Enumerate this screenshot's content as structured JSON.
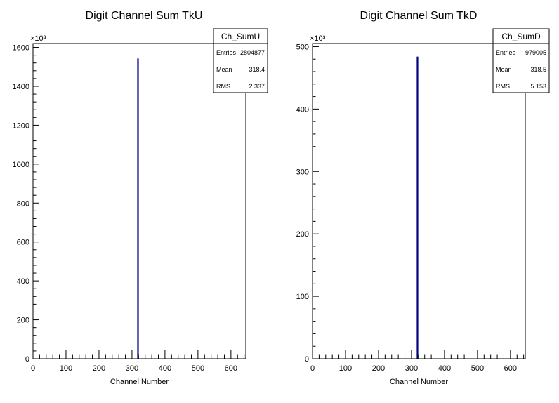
{
  "chart_data": [
    {
      "type": "bar",
      "title": "Digit Channel Sum TkU",
      "xlabel": "Channel Number",
      "ylabel": "",
      "y_multiplier_label": "×10³",
      "xlim": [
        0,
        645
      ],
      "ylim": [
        0,
        1620
      ],
      "xticks": [
        0,
        100,
        200,
        300,
        400,
        500,
        600
      ],
      "yticks": [
        0,
        200,
        400,
        600,
        800,
        1000,
        1200,
        1400,
        1600
      ],
      "bars": [
        {
          "x": 318,
          "y": 1543
        }
      ],
      "stats": {
        "name": "Ch_SumU",
        "rows": [
          {
            "label": "Entries",
            "value": "2804877"
          },
          {
            "label": "Mean",
            "value": "318.4"
          },
          {
            "label": "RMS",
            "value": "2.337"
          }
        ]
      },
      "color": "#000080"
    },
    {
      "type": "bar",
      "title": "Digit Channel Sum TkD",
      "xlabel": "Channel Number",
      "ylabel": "",
      "y_multiplier_label": "×10³",
      "xlim": [
        0,
        645
      ],
      "ylim": [
        0,
        505
      ],
      "xticks": [
        0,
        100,
        200,
        300,
        400,
        500,
        600
      ],
      "yticks": [
        0,
        100,
        200,
        300,
        400,
        500
      ],
      "bars": [
        {
          "x": 318,
          "y": 484
        }
      ],
      "stats": {
        "name": "Ch_SumD",
        "rows": [
          {
            "label": "Entries",
            "value": "979005"
          },
          {
            "label": "Mean",
            "value": "318.5"
          },
          {
            "label": "RMS",
            "value": "5.153"
          }
        ]
      },
      "color": "#000080"
    }
  ]
}
